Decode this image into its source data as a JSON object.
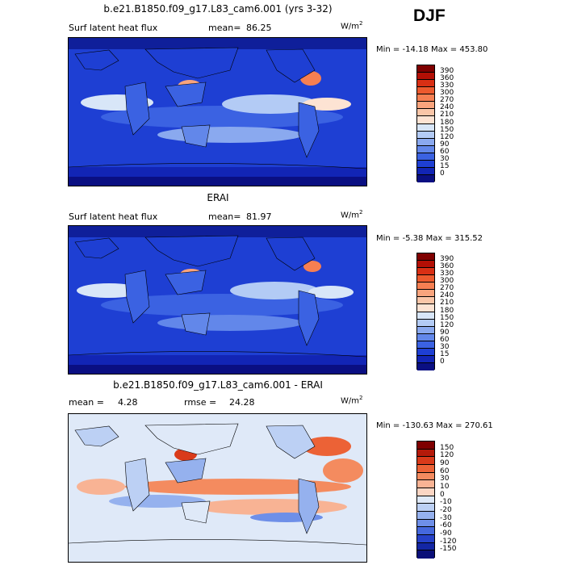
{
  "season": "DJF",
  "units": "W/m",
  "units_exp": "2",
  "colors": {
    "ocean_base": "#1a3fd6",
    "polar": "#0f1f9a",
    "land": "#5b84f0",
    "warm": "#f06a3a",
    "diff_base": "#d6e4f7"
  },
  "panels": [
    {
      "title": "b.e21.B1850.f09_g17.L83_cam6.001 (yrs 3-32)",
      "left_text": "Surf latent heat flux",
      "mean_label": "mean=",
      "mean_value": "86.25",
      "min_label": "Min =",
      "min_value": "-14.18",
      "max_label": "Max =",
      "max_value": "453.80",
      "colorbar": {
        "labels": [
          "390",
          "360",
          "330",
          "300",
          "270",
          "240",
          "210",
          "180",
          "150",
          "120",
          "90",
          "60",
          "30",
          "15",
          "0"
        ],
        "colors": [
          "#7f0000",
          "#b30f05",
          "#d92f14",
          "#ed5a2e",
          "#f67f52",
          "#f9a47d",
          "#fac6a8",
          "#fde3d3",
          "#d8e6f8",
          "#b3cbf5",
          "#8aa9ef",
          "#6287ea",
          "#3b62e2",
          "#1e3fd3",
          "#1225b5",
          "#0a0f82"
        ]
      }
    },
    {
      "title": "ERAI",
      "left_text": "Surf latent heat flux",
      "mean_label": "mean=",
      "mean_value": "81.97",
      "min_label": "Min =",
      "min_value": "-5.38",
      "max_label": "Max =",
      "max_value": "315.52",
      "colorbar": {
        "labels": [
          "390",
          "360",
          "330",
          "300",
          "270",
          "240",
          "210",
          "180",
          "150",
          "120",
          "90",
          "60",
          "30",
          "15",
          "0"
        ],
        "colors": [
          "#7f0000",
          "#b30f05",
          "#d92f14",
          "#ed5a2e",
          "#f67f52",
          "#f9a47d",
          "#fac6a8",
          "#fde3d3",
          "#d8e6f8",
          "#b3cbf5",
          "#8aa9ef",
          "#6287ea",
          "#3b62e2",
          "#1e3fd3",
          "#1225b5",
          "#0a0f82"
        ]
      }
    },
    {
      "title": "b.e21.B1850.f09_g17.L83_cam6.001 - ERAI",
      "left_text": "mean =",
      "mean_label": "",
      "mean_value": "4.28",
      "rmse_label": "rmse =",
      "rmse_value": "24.28",
      "min_label": "Min =",
      "min_value": "-130.63",
      "max_label": "Max =",
      "max_value": "270.61",
      "colorbar": {
        "labels": [
          "150",
          "120",
          "90",
          "60",
          "30",
          "10",
          "0",
          "-10",
          "-20",
          "-30",
          "-60",
          "-90",
          "-120",
          "-150"
        ],
        "colors": [
          "#7f0000",
          "#b51a0a",
          "#d93a1a",
          "#ec6236",
          "#f48b5f",
          "#f8b394",
          "#fbd6c4",
          "#dfe9f8",
          "#bcd0f4",
          "#95b1ee",
          "#6e8fe8",
          "#4568dd",
          "#2641c8",
          "#1326a4",
          "#0a0f78"
        ]
      }
    }
  ]
}
